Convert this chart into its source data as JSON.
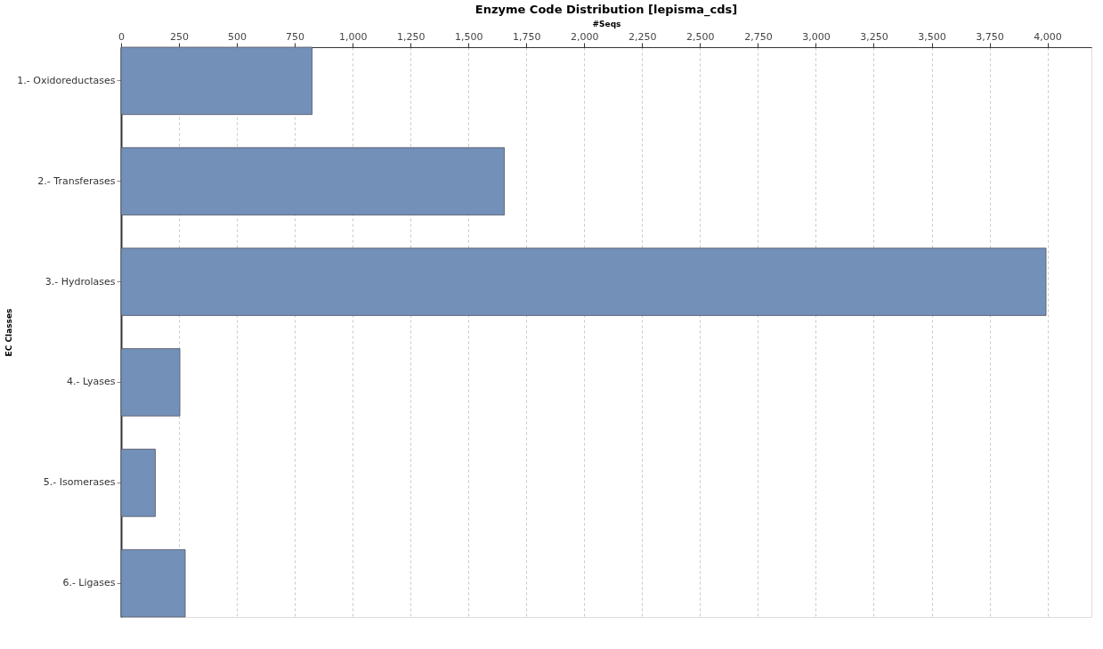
{
  "chart_data": {
    "type": "bar",
    "orientation": "horizontal",
    "title": "Enzyme Code Distribution [lepisma_cds]",
    "xlabel": "#Seqs",
    "ylabel": "EC Classes",
    "categories": [
      "1.- Oxidoreductases",
      "2.- Transferases",
      "3.- Hydrolases",
      "4.- Lyases",
      "5.- Isomerases",
      "6.- Ligases"
    ],
    "values": [
      825,
      1655,
      3994,
      254,
      148,
      277
    ],
    "color": "#7390b8",
    "xlim": [
      0,
      4190
    ],
    "xticks": [
      {
        "value": 0,
        "label": "0"
      },
      {
        "value": 250,
        "label": "250"
      },
      {
        "value": 500,
        "label": "500"
      },
      {
        "value": 750,
        "label": "750"
      },
      {
        "value": 1000,
        "label": "1,000"
      },
      {
        "value": 1250,
        "label": "1,250"
      },
      {
        "value": 1500,
        "label": "1,500"
      },
      {
        "value": 1750,
        "label": "1,750"
      },
      {
        "value": 2000,
        "label": "2,000"
      },
      {
        "value": 2250,
        "label": "2,250"
      },
      {
        "value": 2500,
        "label": "2,500"
      },
      {
        "value": 2750,
        "label": "2,750"
      },
      {
        "value": 3000,
        "label": "3,000"
      },
      {
        "value": 3250,
        "label": "3,250"
      },
      {
        "value": 3500,
        "label": "3,500"
      },
      {
        "value": 3750,
        "label": "3,750"
      },
      {
        "value": 4000,
        "label": "4,000"
      }
    ],
    "grid": "x"
  }
}
